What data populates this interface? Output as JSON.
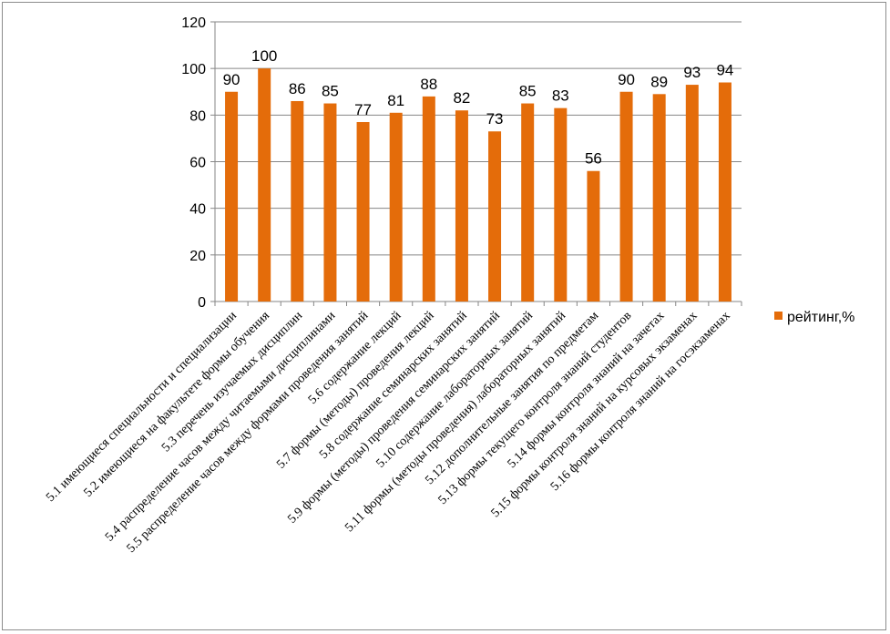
{
  "chart_data": {
    "type": "bar",
    "categories": [
      "5.1 имеющиеся специальности и специализации",
      "5.2 имеющиеся на факультете формы обучения",
      "5.3 перечень изучаемых дисциплин",
      "5.4 распределение часов между читаемыми дисциплинами",
      "5.5 распределение часов между формами проведения занятий",
      "5.6 содержание лекций",
      "5.7 формы (методы) проведения лекций",
      "5.8 содержание семинарских занятий",
      "5.9 формы (методы) проведения семинарских занятий",
      "5.10 содержание лабораторных занятий",
      "5.11 формы (методы проведения) лабораторных занятий",
      "5.12 дополнительные занятия по предметам",
      "5.13 формы текущего контроля знаний студентов",
      "5.14 формы контроля знаний на зачетах",
      "5.15 формы контроля знаний на курсовых экзаменах",
      "5.16 формы контроля знаний на госэкзаменах"
    ],
    "series": [
      {
        "name": "рейтинг,%",
        "values": [
          90,
          100,
          86,
          85,
          77,
          81,
          88,
          82,
          73,
          85,
          83,
          56,
          90,
          89,
          93,
          94
        ]
      }
    ],
    "data_labels": [
      "90",
      "100",
      "86",
      "85",
      "77",
      "81",
      "88",
      "82",
      "73",
      "85",
      "83",
      "56",
      "90",
      "89",
      "93",
      "94"
    ],
    "y_ticks": [
      "0",
      "20",
      "40",
      "60",
      "80",
      "100",
      "120"
    ],
    "ylim": [
      0,
      120
    ],
    "grid": true,
    "legend": {
      "label": "рейтинг,%",
      "placement": "right"
    },
    "colors": {
      "bar": "#E46C0A",
      "grid": "#868686",
      "axis": "#868686"
    }
  }
}
